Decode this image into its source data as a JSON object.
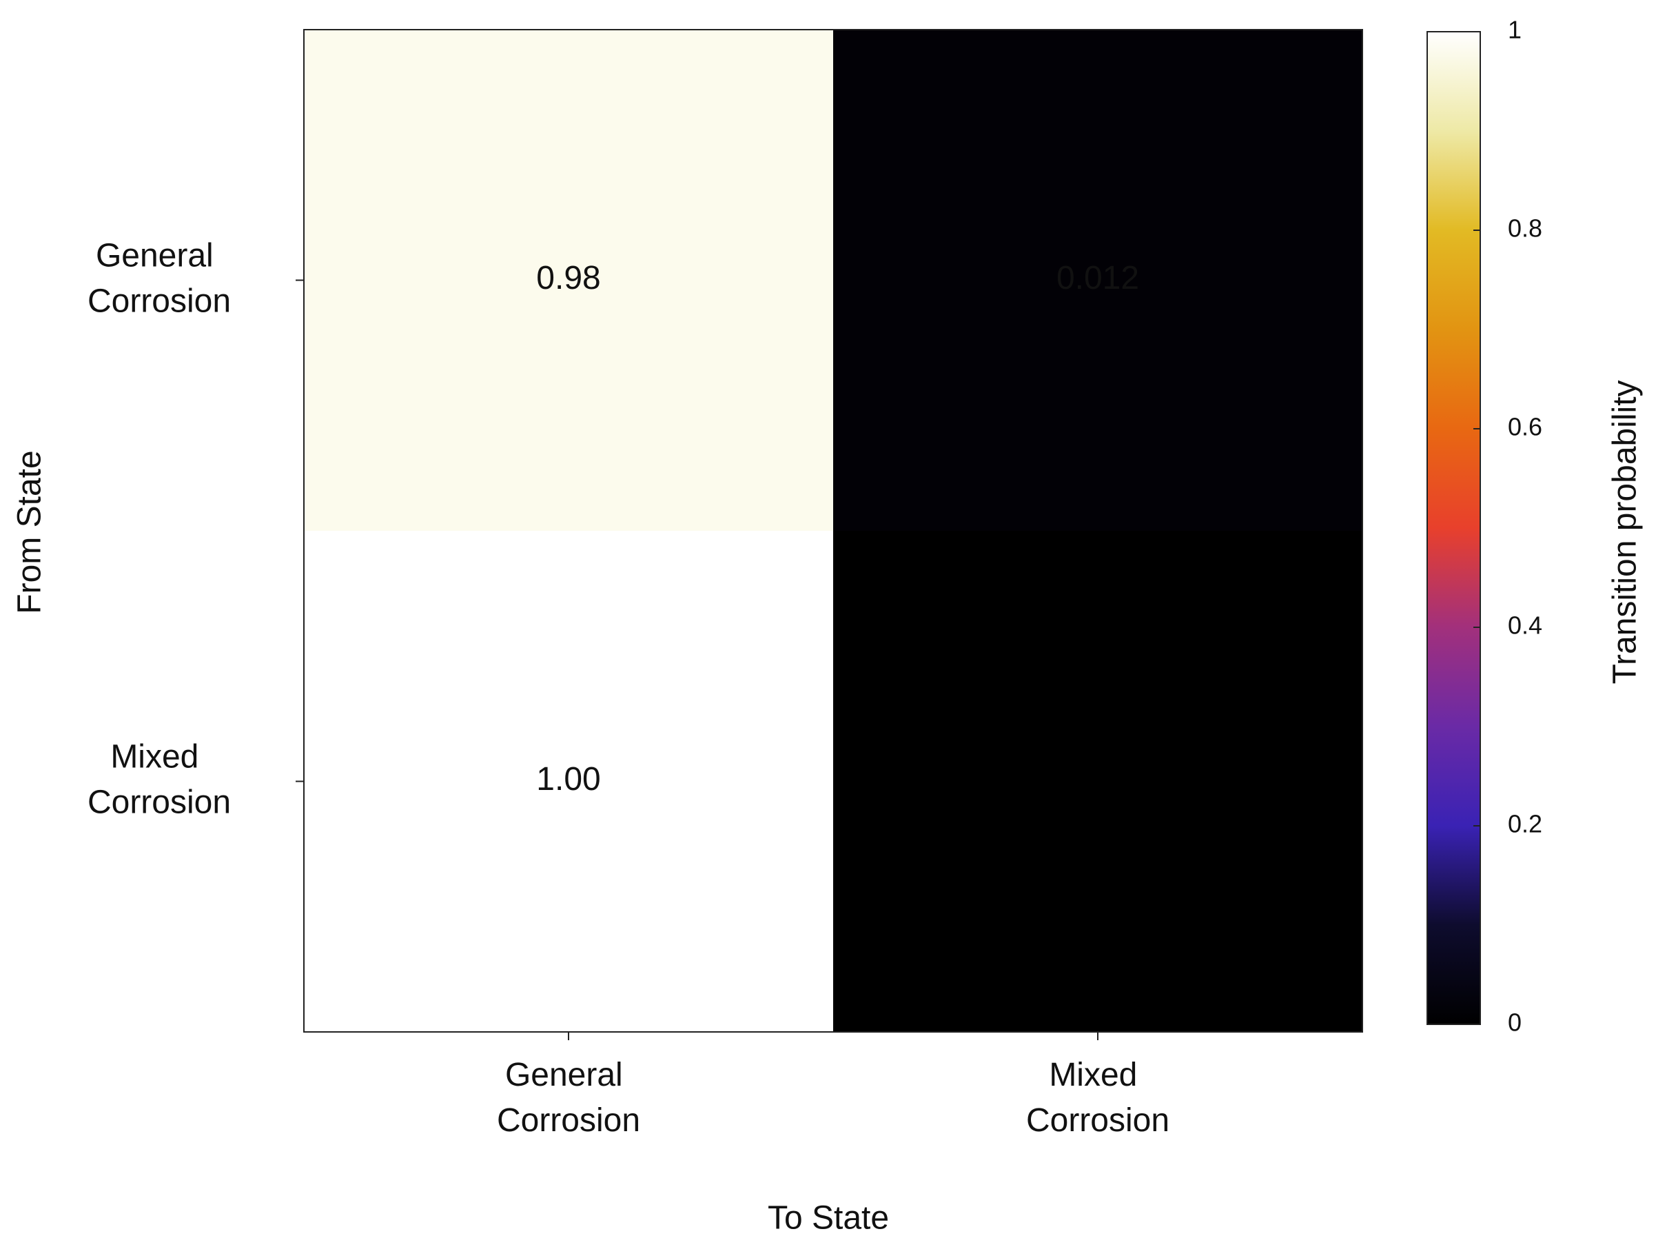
{
  "chart_data": {
    "type": "heatmap",
    "x_label": "To State",
    "y_label": "From State",
    "x_categories": [
      "General Corrosion",
      "Mixed Corrosion"
    ],
    "y_categories": [
      "General Corrosion",
      "Mixed Corrosion"
    ],
    "values": [
      [
        0.98,
        0.012
      ],
      [
        1,
        0
      ]
    ],
    "value_labels": [
      [
        "0.98",
        "0.012"
      ],
      [
        "1.00",
        null
      ]
    ],
    "colorbar": {
      "label": "Transition probability",
      "lim": [
        0,
        1
      ],
      "ticks": [
        0,
        0.2,
        0.4,
        0.6,
        0.8,
        1
      ]
    },
    "colormap": [
      "#000000",
      "#0e0c2e",
      "#3a22b4",
      "#6a2aa6",
      "#a2307c",
      "#e8402c",
      "#e86812",
      "#e29412",
      "#e2ba24",
      "#eee9a6",
      "#ffffff"
    ]
  }
}
